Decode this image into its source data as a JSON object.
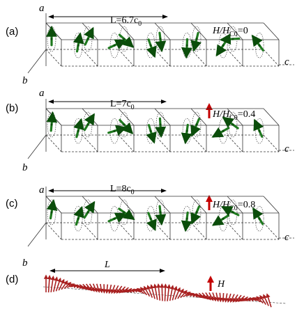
{
  "panels": [
    {
      "letter": "(a)",
      "period_label": "L=6.7c",
      "period_sub": "0",
      "field_label": "H/H",
      "field_sub": "C0",
      "field_value": "=0",
      "field_arrow": false,
      "axis_a": "a",
      "axis_b": "b",
      "axis_c": "c"
    },
    {
      "letter": "(b)",
      "period_label": "L=7c",
      "period_sub": "0",
      "field_label": "H/H",
      "field_sub": "C0",
      "field_value": "=0.4",
      "field_arrow": true,
      "axis_a": "a",
      "axis_b": "b",
      "axis_c": "c"
    },
    {
      "letter": "(c)",
      "period_label": "L=8c",
      "period_sub": "0",
      "field_label": "H/H",
      "field_sub": "C0",
      "field_value": "=0.8",
      "field_arrow": true,
      "axis_a": "a",
      "axis_b": "b",
      "axis_c": "c"
    }
  ],
  "panel_d": {
    "letter": "(d)",
    "period_label": "L",
    "field_label": "H"
  },
  "colors": {
    "spin": "#1f7a1f",
    "spin_dark": "#0b4d0b",
    "field_arrow": "#c40000",
    "helix": "#a82020",
    "lines": "#333333"
  }
}
